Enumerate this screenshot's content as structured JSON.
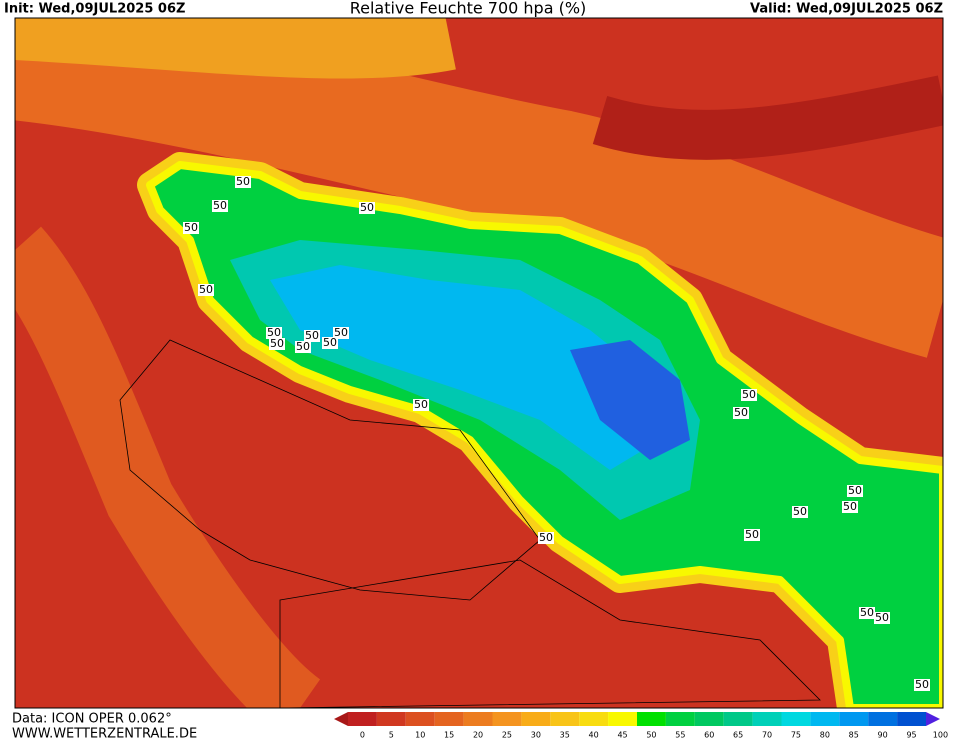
{
  "header": {
    "init": "Init: Wed,09JUL2025 06Z",
    "title": "Relative Feuchte 700 hpa (%)",
    "valid": "Valid: Wed,09JUL2025 06Z"
  },
  "footer": {
    "data": "Data: ICON OPER 0.062°",
    "site": "WWW.WETTERZENTRALE.DE"
  },
  "colorbar": {
    "ticks": [
      0,
      5,
      10,
      15,
      20,
      25,
      30,
      35,
      40,
      45,
      50,
      55,
      60,
      65,
      70,
      75,
      80,
      85,
      90,
      95,
      100
    ],
    "colors": [
      "#a81818",
      "#c02020",
      "#d03820",
      "#dc5020",
      "#e46420",
      "#ec7c20",
      "#f49420",
      "#f8ac18",
      "#f8c418",
      "#f8dc10",
      "#f8f800",
      "#00e000",
      "#00d040",
      "#00c860",
      "#00c888",
      "#00d0b8",
      "#00d8e0",
      "#00b8f0",
      "#0098f0",
      "#0070e0",
      "#0050d0",
      "#5020e0"
    ]
  },
  "contour_labels": [
    "50",
    "50",
    "50",
    "50",
    "50",
    "50",
    "50",
    "50",
    "50",
    "50",
    "50",
    "50",
    "50",
    "50",
    "50",
    "50",
    "50",
    "50",
    "50",
    "50",
    "50",
    "50"
  ]
}
